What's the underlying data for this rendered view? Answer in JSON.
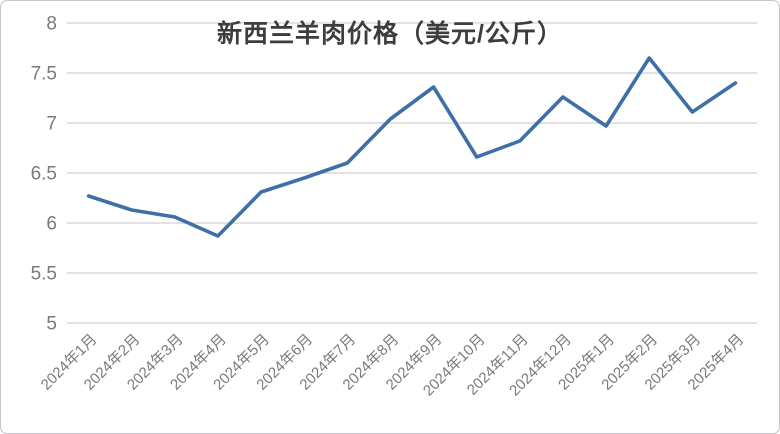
{
  "chart": {
    "colors": {
      "line": "#3e6fa8",
      "grid": "#d9d9d9",
      "title_text": "#3d3d3d",
      "axis_text": "#7a7a7a",
      "background": "#ffffff",
      "border": "#c6c6cb"
    }
  },
  "chart_data": {
    "type": "line",
    "title": "新西兰羊肉价格（美元/公斤）",
    "categories": [
      "2024年1月",
      "2024年2月",
      "2024年3月",
      "2024年4月",
      "2024年5月",
      "2024年6月",
      "2024年7月",
      "2024年8月",
      "2024年9月",
      "2024年10月",
      "2024年11月",
      "2024年12月",
      "2025年1月",
      "2025年2月",
      "2025年3月",
      "2025年4月"
    ],
    "values": [
      6.27,
      6.13,
      6.06,
      5.87,
      6.31,
      6.45,
      6.6,
      7.04,
      7.36,
      6.66,
      6.82,
      7.26,
      6.97,
      7.65,
      7.11,
      7.4
    ],
    "series_name": "新西兰羊肉价格",
    "xlabel": "",
    "ylabel": "",
    "ylim": [
      5,
      8
    ],
    "yticks": [
      8,
      7.5,
      7,
      6.5,
      6,
      5.5,
      5
    ],
    "grid": true,
    "legend_position": "none",
    "x_label_rotation_deg": 45
  }
}
